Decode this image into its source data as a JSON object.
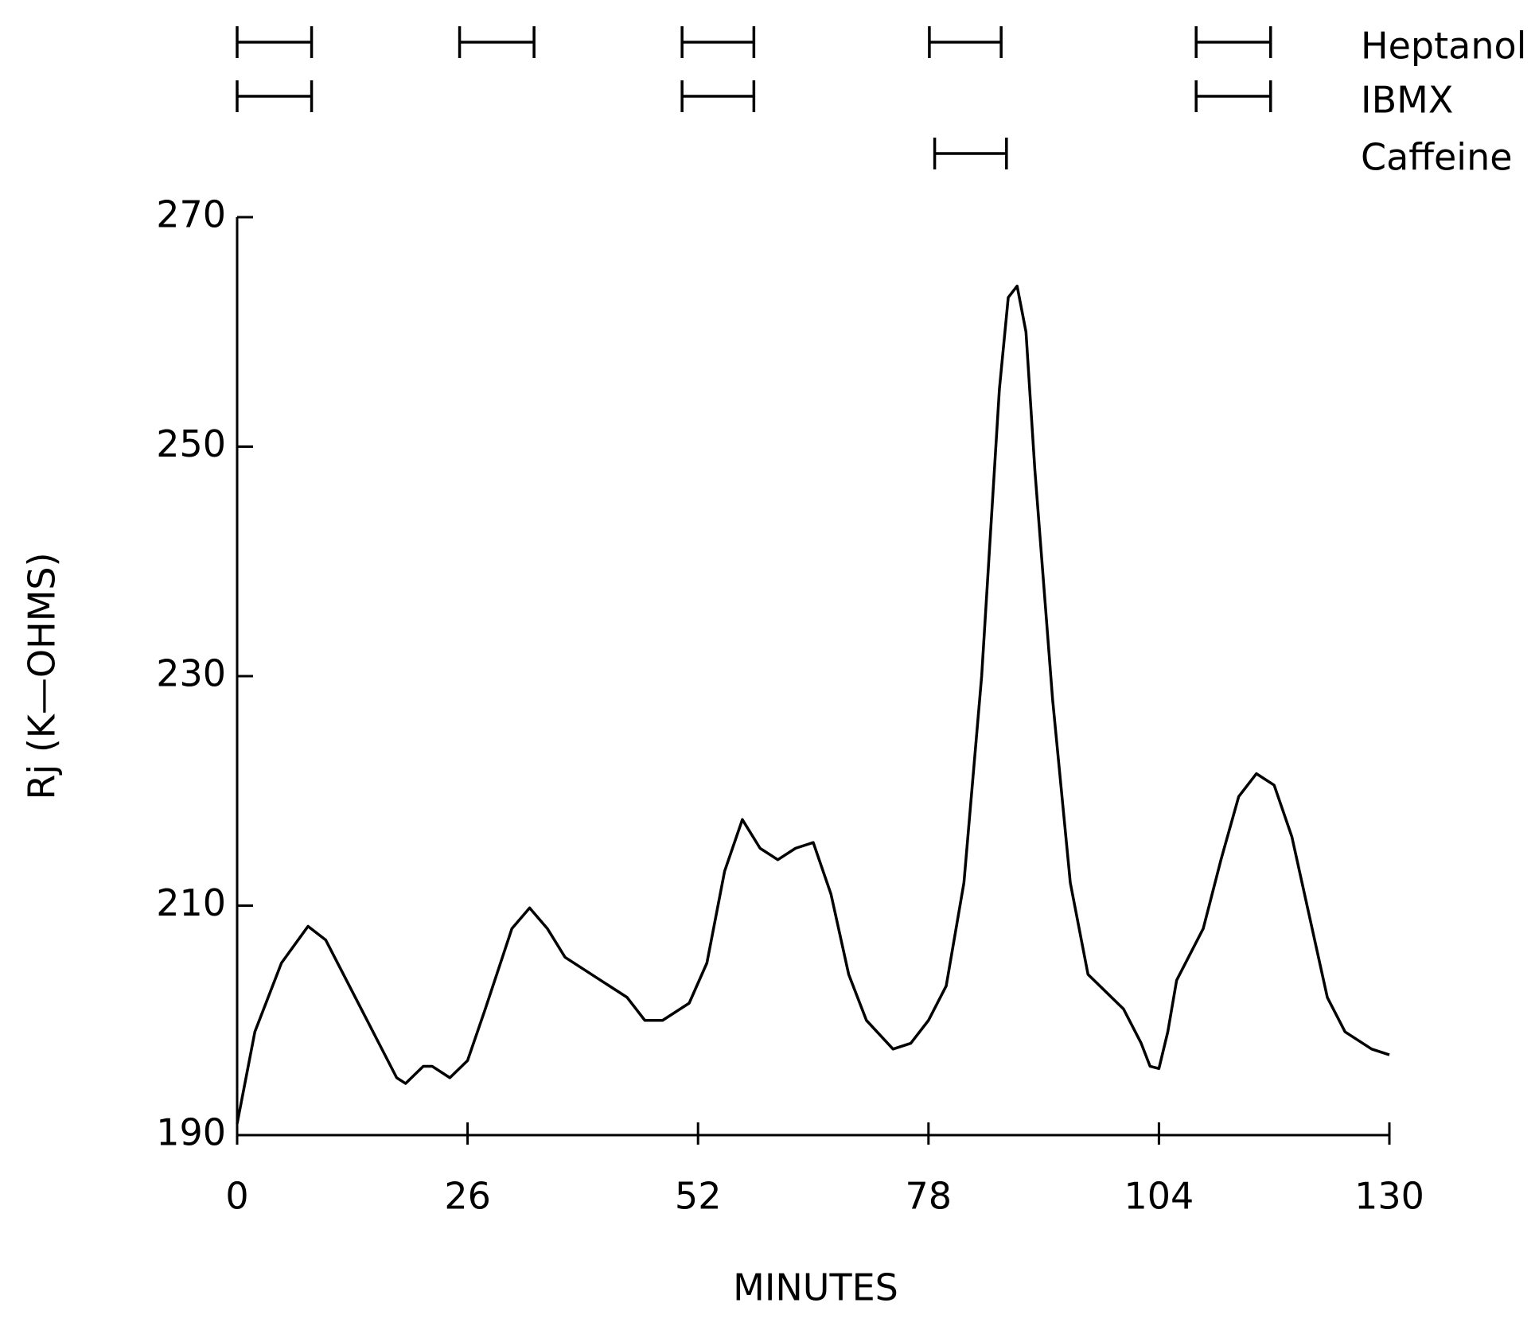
{
  "chart_data": {
    "type": "line",
    "x_label": "MINUTES",
    "y_label": "Rj (K—OHMS)",
    "xlim": [
      0,
      130
    ],
    "xticks": [
      0,
      26,
      52,
      78,
      104,
      130
    ],
    "ylim": [
      190,
      270
    ],
    "yticks": [
      190,
      210,
      230,
      250,
      270
    ],
    "x": [
      0,
      2,
      5,
      8,
      10,
      14,
      18,
      19,
      21,
      22,
      24,
      26,
      28,
      31,
      33,
      35,
      37,
      40,
      44,
      46,
      48,
      51,
      53,
      55,
      57,
      59,
      61,
      63,
      65,
      67,
      69,
      71,
      74,
      76,
      78,
      80,
      82,
      84,
      86,
      87,
      88,
      89,
      90,
      92,
      94,
      96,
      100,
      102,
      103,
      104,
      105,
      106,
      109,
      111,
      113,
      115,
      117,
      119,
      121,
      123,
      125,
      128,
      130
    ],
    "series": [
      {
        "color": "#000000",
        "values": [
          191,
          199,
          205,
          208.2,
          207,
          201,
          195,
          194.5,
          196,
          196,
          195,
          196.5,
          201,
          208,
          209.8,
          208,
          205.5,
          204,
          202,
          200,
          200,
          201.5,
          205,
          213,
          217.5,
          215,
          214,
          215,
          215.5,
          211,
          204,
          200,
          197.5,
          198,
          200,
          203,
          212,
          230,
          255,
          263,
          264,
          260,
          248,
          228,
          212,
          204,
          201,
          198,
          196,
          195.8,
          199,
          203.5,
          208,
          214,
          219.5,
          221.5,
          220.5,
          216,
          209,
          202,
          199,
          197.5,
          197
        ]
      }
    ],
    "treatments": [
      {
        "name": "Heptanol",
        "intervals": [
          [
            0,
            8.4
          ],
          [
            25.1,
            33.5
          ],
          [
            50.2,
            58.3
          ],
          [
            78.1,
            86.2
          ],
          [
            108.2,
            116.6
          ]
        ]
      },
      {
        "name": "IBMX",
        "intervals": [
          [
            0,
            8.4
          ],
          [
            50.2,
            58.3
          ],
          [
            108.2,
            116.6
          ]
        ]
      },
      {
        "name": "Caffeine",
        "intervals": [
          [
            78.7,
            86.8
          ]
        ]
      }
    ]
  }
}
